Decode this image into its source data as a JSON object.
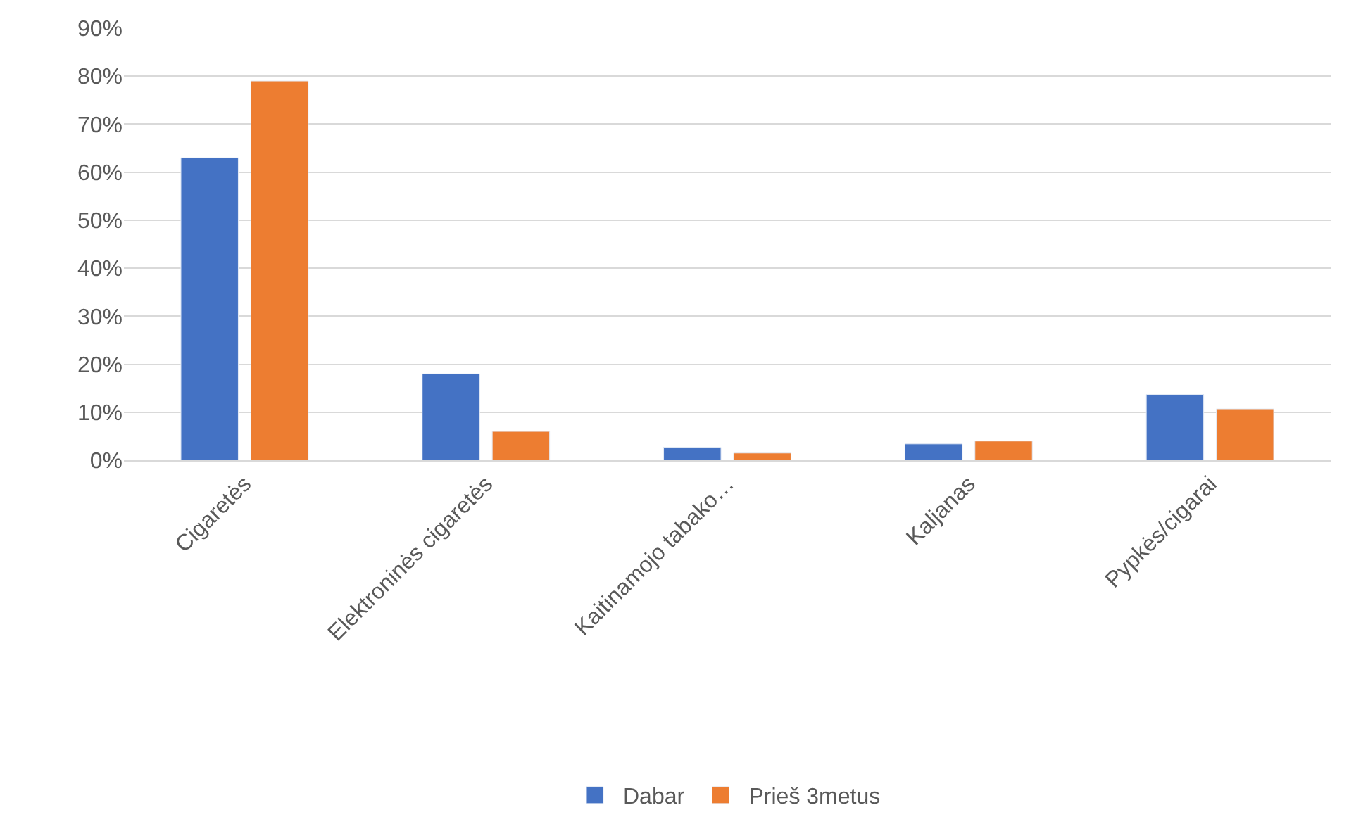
{
  "chart_data": {
    "type": "bar",
    "categories": [
      "Cigaretės",
      "Elektroninės cigaretės",
      "Kaitinamojo tabako…",
      "Kaljanas",
      "Pypkės/cigarai"
    ],
    "series": [
      {
        "name": "Dabar",
        "color": "#4472c4",
        "values": [
          63,
          18,
          2.7,
          3.4,
          13.7
        ]
      },
      {
        "name": "Prieš 3metus",
        "color": "#ed7d31",
        "values": [
          79,
          6,
          1.5,
          4,
          10.7
        ]
      }
    ],
    "ylim": [
      0,
      90
    ],
    "yticks": [
      {
        "value": 0,
        "label": "0%"
      },
      {
        "value": 10,
        "label": "10%"
      },
      {
        "value": 20,
        "label": "20%"
      },
      {
        "value": 30,
        "label": "30%"
      },
      {
        "value": 40,
        "label": "40%"
      },
      {
        "value": 50,
        "label": "50%"
      },
      {
        "value": 60,
        "label": "60%"
      },
      {
        "value": 70,
        "label": "70%"
      },
      {
        "value": 80,
        "label": "80%"
      },
      {
        "value": 90,
        "label": "90%"
      }
    ],
    "grid": "y",
    "legend": "bottom"
  }
}
